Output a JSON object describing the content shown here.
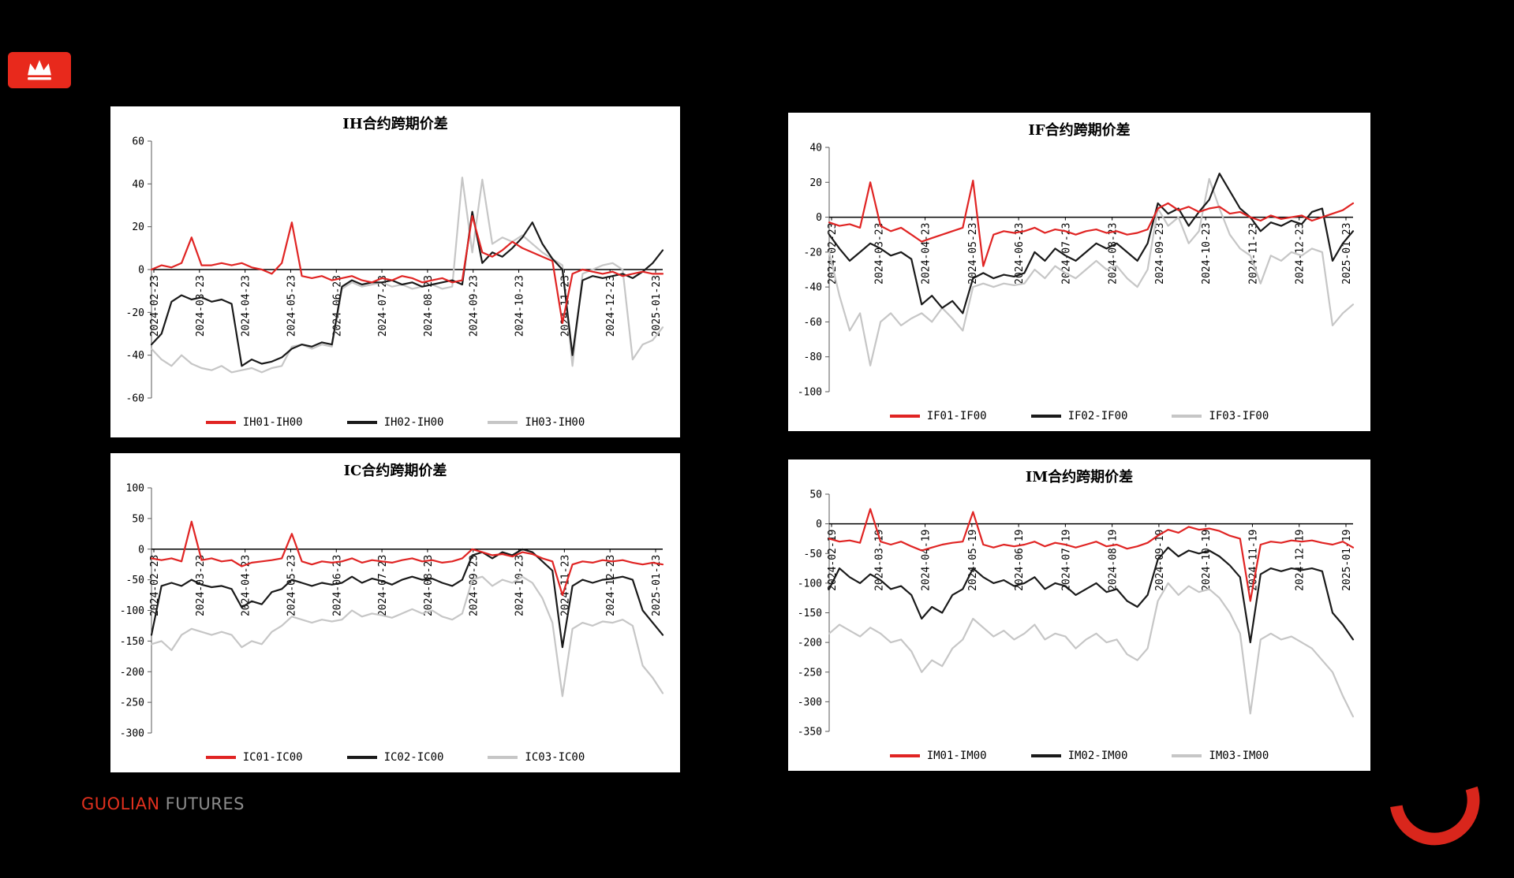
{
  "brand": {
    "logo_color": "#e8291c",
    "name_primary": "GUOLIAN",
    "name_secondary": "FUTURES",
    "primary_color": "#e0301e",
    "secondary_color": "#8c8c8c"
  },
  "colors": {
    "page_bg": "#000000",
    "panel_bg": "#ffffff",
    "series_red": "#e02423",
    "series_black": "#1a1a1a",
    "series_gray": "#c6c6c6",
    "swoosh_red": "#d9261c",
    "axis": "#000000"
  },
  "chart_data": [
    {
      "id": "IH",
      "type": "line",
      "title": "IH合约跨期价差",
      "xlabel": "",
      "ylabel": "",
      "ylim": [
        -60,
        60
      ],
      "yticks": [
        60,
        40,
        20,
        0,
        -20,
        -40,
        -60
      ],
      "grid": false,
      "legend_position": "bottom",
      "x_labels": [
        "2024-02-23",
        "2024-03-23",
        "2024-04-23",
        "2024-05-23",
        "2024-06-23",
        "2024-07-23",
        "2024-08-23",
        "2024-09-23",
        "2024-10-23",
        "2024-11-23",
        "2024-12-23",
        "2025-01-23"
      ],
      "series": [
        {
          "name": "IH01-IH00",
          "color": "#e02423",
          "values": [
            0,
            2,
            1,
            3,
            15,
            2,
            2,
            3,
            2,
            3,
            1,
            0,
            -2,
            3,
            22,
            -3,
            -4,
            -3,
            -5,
            -4,
            -3,
            -5,
            -6,
            -4,
            -5,
            -3,
            -4,
            -6,
            -5,
            -4,
            -6,
            -5,
            25,
            8,
            6,
            9,
            13,
            10,
            8,
            6,
            4,
            -25,
            -2,
            0,
            -1,
            -2,
            -1,
            -3,
            -2,
            -1,
            -2,
            -2
          ]
        },
        {
          "name": "IH02-IH00",
          "color": "#1a1a1a",
          "values": [
            -35,
            -30,
            -15,
            -12,
            -14,
            -13,
            -15,
            -14,
            -16,
            -45,
            -42,
            -44,
            -43,
            -41,
            -37,
            -35,
            -36,
            -34,
            -35,
            -8,
            -5,
            -7,
            -6,
            -6,
            -5,
            -7,
            -6,
            -8,
            -7,
            -6,
            -5,
            -7,
            27,
            3,
            8,
            6,
            10,
            15,
            22,
            12,
            5,
            0,
            -40,
            -5,
            -3,
            -4,
            -3,
            -2,
            -4,
            -1,
            3,
            9
          ]
        },
        {
          "name": "IH03-IH00",
          "color": "#c6c6c6",
          "values": [
            -37,
            -42,
            -45,
            -40,
            -44,
            -46,
            -47,
            -45,
            -48,
            -47,
            -46,
            -48,
            -46,
            -45,
            -36,
            -35,
            -37,
            -35,
            -36,
            -9,
            -6,
            -8,
            -7,
            -6,
            -8,
            -7,
            -9,
            -8,
            -7,
            -9,
            -8,
            43,
            8,
            42,
            12,
            15,
            13,
            16,
            12,
            8,
            5,
            2,
            -45,
            -2,
            0,
            2,
            3,
            0,
            -42,
            -35,
            -33,
            -27
          ]
        }
      ]
    },
    {
      "id": "IF",
      "type": "line",
      "title": "IF合约跨期价差",
      "xlabel": "",
      "ylabel": "",
      "ylim": [
        -100,
        40
      ],
      "yticks": [
        40,
        20,
        0,
        -20,
        -40,
        -60,
        -80,
        -100
      ],
      "grid": false,
      "legend_position": "bottom",
      "x_labels": [
        "2024-02-23",
        "2024-03-23",
        "2024-04-23",
        "2024-05-23",
        "2024-06-23",
        "2024-07-23",
        "2024-08-23",
        "2024-09-23",
        "2024-10-23",
        "2024-11-23",
        "2024-12-23",
        "2025-01-23"
      ],
      "series": [
        {
          "name": "IF01-IF00",
          "color": "#e02423",
          "values": [
            -3,
            -5,
            -4,
            -6,
            20,
            -5,
            -8,
            -6,
            -10,
            -14,
            -12,
            -10,
            -8,
            -6,
            21,
            -28,
            -10,
            -8,
            -9,
            -8,
            -6,
            -9,
            -7,
            -8,
            -10,
            -8,
            -7,
            -9,
            -8,
            -10,
            -9,
            -7,
            5,
            8,
            4,
            6,
            3,
            5,
            6,
            2,
            3,
            0,
            -2,
            1,
            -1,
            0,
            1,
            -2,
            0,
            2,
            4,
            8
          ]
        },
        {
          "name": "IF02-IF00",
          "color": "#1a1a1a",
          "values": [
            -10,
            -18,
            -25,
            -20,
            -15,
            -18,
            -22,
            -20,
            -24,
            -50,
            -45,
            -52,
            -48,
            -55,
            -35,
            -32,
            -35,
            -33,
            -34,
            -32,
            -20,
            -25,
            -18,
            -22,
            -25,
            -20,
            -15,
            -18,
            -15,
            -20,
            -25,
            -15,
            8,
            2,
            5,
            -5,
            3,
            10,
            25,
            15,
            5,
            0,
            -8,
            -3,
            -5,
            -2,
            -4,
            3,
            5,
            -25,
            -15,
            -8
          ]
        },
        {
          "name": "IF03-IF00",
          "color": "#c6c6c6",
          "values": [
            -20,
            -45,
            -65,
            -55,
            -85,
            -60,
            -55,
            -62,
            -58,
            -55,
            -60,
            -52,
            -58,
            -65,
            -40,
            -38,
            -40,
            -38,
            -39,
            -38,
            -30,
            -35,
            -28,
            -32,
            -35,
            -30,
            -25,
            -30,
            -28,
            -35,
            -40,
            -30,
            5,
            -5,
            0,
            -15,
            -8,
            22,
            5,
            -10,
            -18,
            -22,
            -38,
            -22,
            -25,
            -20,
            -22,
            -18,
            -20,
            -62,
            -55,
            -50
          ]
        }
      ]
    },
    {
      "id": "IC",
      "type": "line",
      "title": "IC合约跨期价差",
      "xlabel": "",
      "ylabel": "",
      "ylim": [
        -300,
        100
      ],
      "yticks": [
        100,
        50,
        0,
        -50,
        -100,
        -150,
        -200,
        -250,
        -300
      ],
      "grid": false,
      "legend_position": "bottom",
      "x_labels": [
        "2024-02-23",
        "2024-03-23",
        "2024-04-23",
        "2024-05-23",
        "2024-06-23",
        "2024-07-23",
        "2024-08-23",
        "2024-09-23",
        "2024-10-23",
        "2024-11-23",
        "2024-12-23",
        "2025-01-23"
      ],
      "series": [
        {
          "name": "IC01-IC00",
          "color": "#e02423",
          "values": [
            -15,
            -18,
            -15,
            -20,
            45,
            -18,
            -15,
            -20,
            -18,
            -28,
            -22,
            -20,
            -18,
            -15,
            25,
            -20,
            -25,
            -20,
            -22,
            -20,
            -15,
            -22,
            -18,
            -20,
            -22,
            -18,
            -15,
            -20,
            -18,
            -22,
            -20,
            -15,
            0,
            -5,
            -10,
            -8,
            -12,
            -5,
            -8,
            -15,
            -20,
            -75,
            -25,
            -20,
            -22,
            -18,
            -20,
            -18,
            -22,
            -25,
            -22,
            -25
          ]
        },
        {
          "name": "IC02-IC00",
          "color": "#1a1a1a",
          "values": [
            -140,
            -60,
            -55,
            -60,
            -50,
            -58,
            -62,
            -60,
            -65,
            -95,
            -85,
            -90,
            -70,
            -65,
            -50,
            -55,
            -60,
            -55,
            -58,
            -55,
            -45,
            -55,
            -48,
            -52,
            -58,
            -50,
            -45,
            -50,
            -48,
            -55,
            -60,
            -50,
            -10,
            -5,
            -15,
            -5,
            -10,
            0,
            -5,
            -20,
            -35,
            -160,
            -60,
            -50,
            -55,
            -50,
            -48,
            -45,
            -50,
            -100,
            -120,
            -140
          ]
        },
        {
          "name": "IC03-IC00",
          "color": "#c6c6c6",
          "values": [
            -155,
            -150,
            -165,
            -140,
            -130,
            -135,
            -140,
            -135,
            -140,
            -160,
            -150,
            -155,
            -135,
            -125,
            -110,
            -115,
            -120,
            -115,
            -118,
            -115,
            -100,
            -110,
            -105,
            -108,
            -112,
            -105,
            -98,
            -105,
            -100,
            -110,
            -115,
            -105,
            -50,
            -45,
            -60,
            -50,
            -55,
            -45,
            -55,
            -80,
            -120,
            -240,
            -130,
            -120,
            -125,
            -118,
            -120,
            -115,
            -125,
            -190,
            -210,
            -235
          ]
        }
      ]
    },
    {
      "id": "IM",
      "type": "line",
      "title": "IM合约跨期价差",
      "xlabel": "",
      "ylabel": "",
      "ylim": [
        -350,
        50
      ],
      "yticks": [
        50,
        0,
        -50,
        -100,
        -150,
        -200,
        -250,
        -300,
        -350
      ],
      "grid": false,
      "legend_position": "bottom",
      "x_labels": [
        "2024-02-19",
        "2024-03-19",
        "2024-04-19",
        "2024-05-19",
        "2024-06-19",
        "2024-07-19",
        "2024-08-19",
        "2024-09-19",
        "2024-10-19",
        "2024-11-19",
        "2024-12-19",
        "2025-01-19"
      ],
      "series": [
        {
          "name": "IM01-IM00",
          "color": "#e02423",
          "values": [
            -25,
            -30,
            -28,
            -32,
            25,
            -30,
            -35,
            -30,
            -38,
            -45,
            -40,
            -35,
            -32,
            -30,
            20,
            -35,
            -40,
            -35,
            -38,
            -35,
            -30,
            -38,
            -32,
            -35,
            -40,
            -35,
            -30,
            -38,
            -35,
            -42,
            -38,
            -32,
            -20,
            -10,
            -15,
            -5,
            -10,
            -8,
            -12,
            -20,
            -25,
            -130,
            -35,
            -30,
            -32,
            -28,
            -30,
            -28,
            -32,
            -35,
            -30,
            -40
          ]
        },
        {
          "name": "IM02-IM00",
          "color": "#1a1a1a",
          "values": [
            -110,
            -75,
            -90,
            -100,
            -85,
            -95,
            -110,
            -105,
            -120,
            -160,
            -140,
            -150,
            -120,
            -110,
            -75,
            -90,
            -100,
            -95,
            -105,
            -100,
            -90,
            -110,
            -100,
            -105,
            -120,
            -110,
            -100,
            -115,
            -110,
            -130,
            -140,
            -120,
            -60,
            -40,
            -55,
            -45,
            -50,
            -45,
            -55,
            -70,
            -90,
            -200,
            -85,
            -75,
            -80,
            -75,
            -78,
            -75,
            -80,
            -150,
            -170,
            -195
          ]
        },
        {
          "name": "IM03-IM00",
          "color": "#c6c6c6",
          "values": [
            -185,
            -170,
            -180,
            -190,
            -175,
            -185,
            -200,
            -195,
            -215,
            -250,
            -230,
            -240,
            -210,
            -195,
            -160,
            -175,
            -190,
            -180,
            -195,
            -185,
            -170,
            -195,
            -185,
            -190,
            -210,
            -195,
            -185,
            -200,
            -195,
            -220,
            -230,
            -210,
            -130,
            -100,
            -120,
            -105,
            -115,
            -110,
            -125,
            -150,
            -185,
            -320,
            -195,
            -185,
            -195,
            -190,
            -200,
            -210,
            -230,
            -250,
            -290,
            -325
          ]
        }
      ]
    }
  ]
}
